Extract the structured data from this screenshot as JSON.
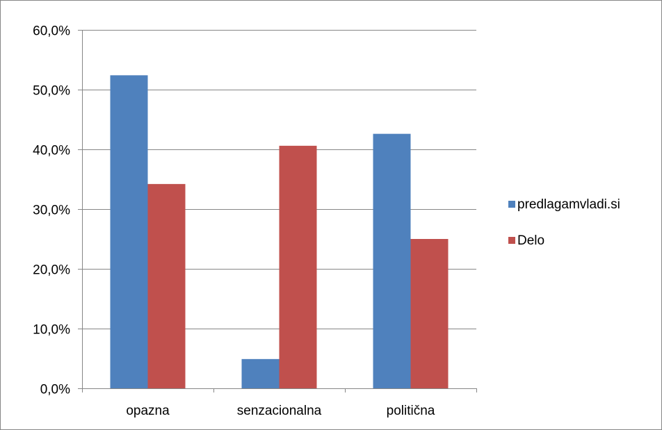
{
  "chart_data": {
    "type": "bar",
    "categories": [
      "opazna",
      "senzacionalna",
      "politična"
    ],
    "series": [
      {
        "name": "predlagamvladi.si",
        "color": "#4F81BD",
        "values": [
          52.4,
          4.9,
          42.6
        ]
      },
      {
        "name": "Delo",
        "color": "#C0504D",
        "values": [
          34.2,
          40.6,
          25.0
        ]
      }
    ],
    "y_ticks": [
      "0,0%",
      "10,0%",
      "20,0%",
      "30,0%",
      "40,0%",
      "50,0%",
      "60,0%"
    ],
    "ylim": [
      0,
      60
    ],
    "grid": true,
    "legend_position": "right",
    "gridline_color": "#868686"
  }
}
